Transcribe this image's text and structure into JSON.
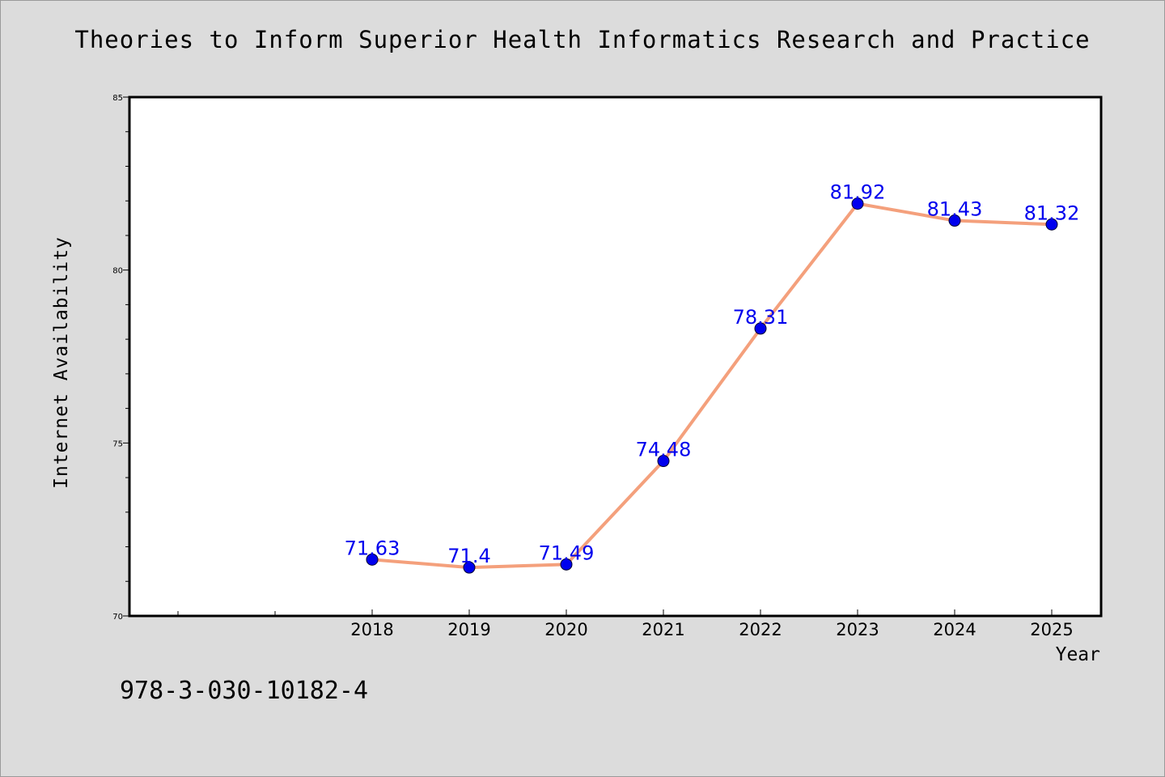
{
  "chart_data": {
    "type": "line",
    "title": "Theories to Inform Superior Health Informatics Research and Practice",
    "xlabel": "Year",
    "ylabel": "Internet Availability",
    "x": [
      "2018",
      "2019",
      "2020",
      "2021",
      "2022",
      "2023",
      "2024",
      "2025"
    ],
    "series": [
      {
        "values": [
          71.63,
          71.4,
          71.49,
          74.48,
          78.31,
          81.92,
          81.43,
          81.32
        ],
        "data_labels": [
          "71.63",
          "71.4",
          "71.49",
          "74.48",
          "78.31",
          "81.92",
          "81.43",
          "81.32"
        ],
        "line_color": "#f4a07c",
        "marker_color": "#0000ee"
      }
    ],
    "ylim": [
      70,
      85
    ],
    "yticks": [
      "70",
      "75",
      "80",
      "85"
    ],
    "grid": false,
    "legend": "none"
  },
  "footer": {
    "code": "978-3-030-10182-4"
  },
  "colors": {
    "background": "#dcdcdc",
    "plot_background": "#ffffff",
    "line": "#f4a07c",
    "marker": "#0000ee",
    "label": "#0000ee"
  }
}
